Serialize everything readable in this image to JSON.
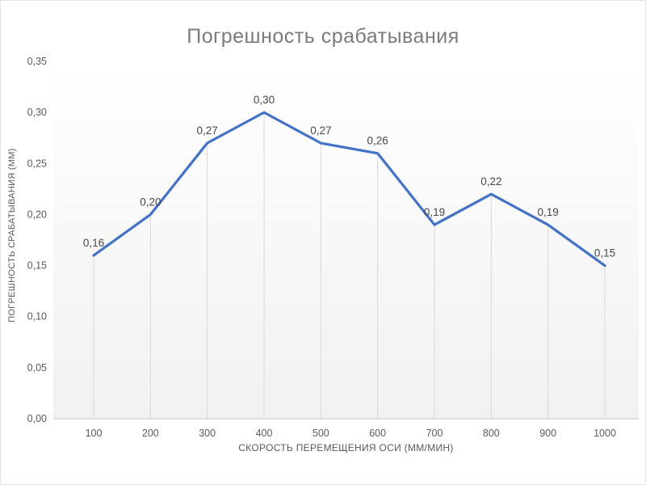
{
  "page": {
    "background": "#ffffff",
    "border_color": "#e3e3e3"
  },
  "chart_data": {
    "type": "line",
    "title": "Погрешность срабатывания",
    "categories": [
      100,
      200,
      300,
      400,
      500,
      600,
      700,
      800,
      900,
      1000
    ],
    "values": [
      0.16,
      0.2,
      0.27,
      0.3,
      0.27,
      0.26,
      0.19,
      0.22,
      0.19,
      0.15
    ],
    "data_labels": [
      "0,16",
      "0,20",
      "0,27",
      "0,30",
      "0,27",
      "0,26",
      "0,19",
      "0,22",
      "0,19",
      "0,15"
    ],
    "xlabel": "СКОРОСТЬ ПЕРЕМЕЩЕНИЯ ОСИ (ММ/МИН)",
    "ylabel": "ПОГРЕШНОСТЬ СРАБАТЫВАНИЯ (ММ)",
    "ylim": [
      0,
      0.35
    ],
    "ytick_step": 0.05,
    "ytick_labels": [
      "0,00",
      "0,05",
      "0,10",
      "0,15",
      "0,20",
      "0,25",
      "0,30",
      "0,35"
    ],
    "grid": "off",
    "legend": "none",
    "droplines": true,
    "colors": {
      "line": "#4472c4",
      "dropline": "#d9d9d9",
      "axis_line": "#d6d6d6",
      "tick_label": "#5a5a5a",
      "data_label": "#484848",
      "title": "#7b7b7b",
      "plot_bg_top": "#ffffff",
      "plot_bg_bottom": "#f1f1f1"
    }
  }
}
